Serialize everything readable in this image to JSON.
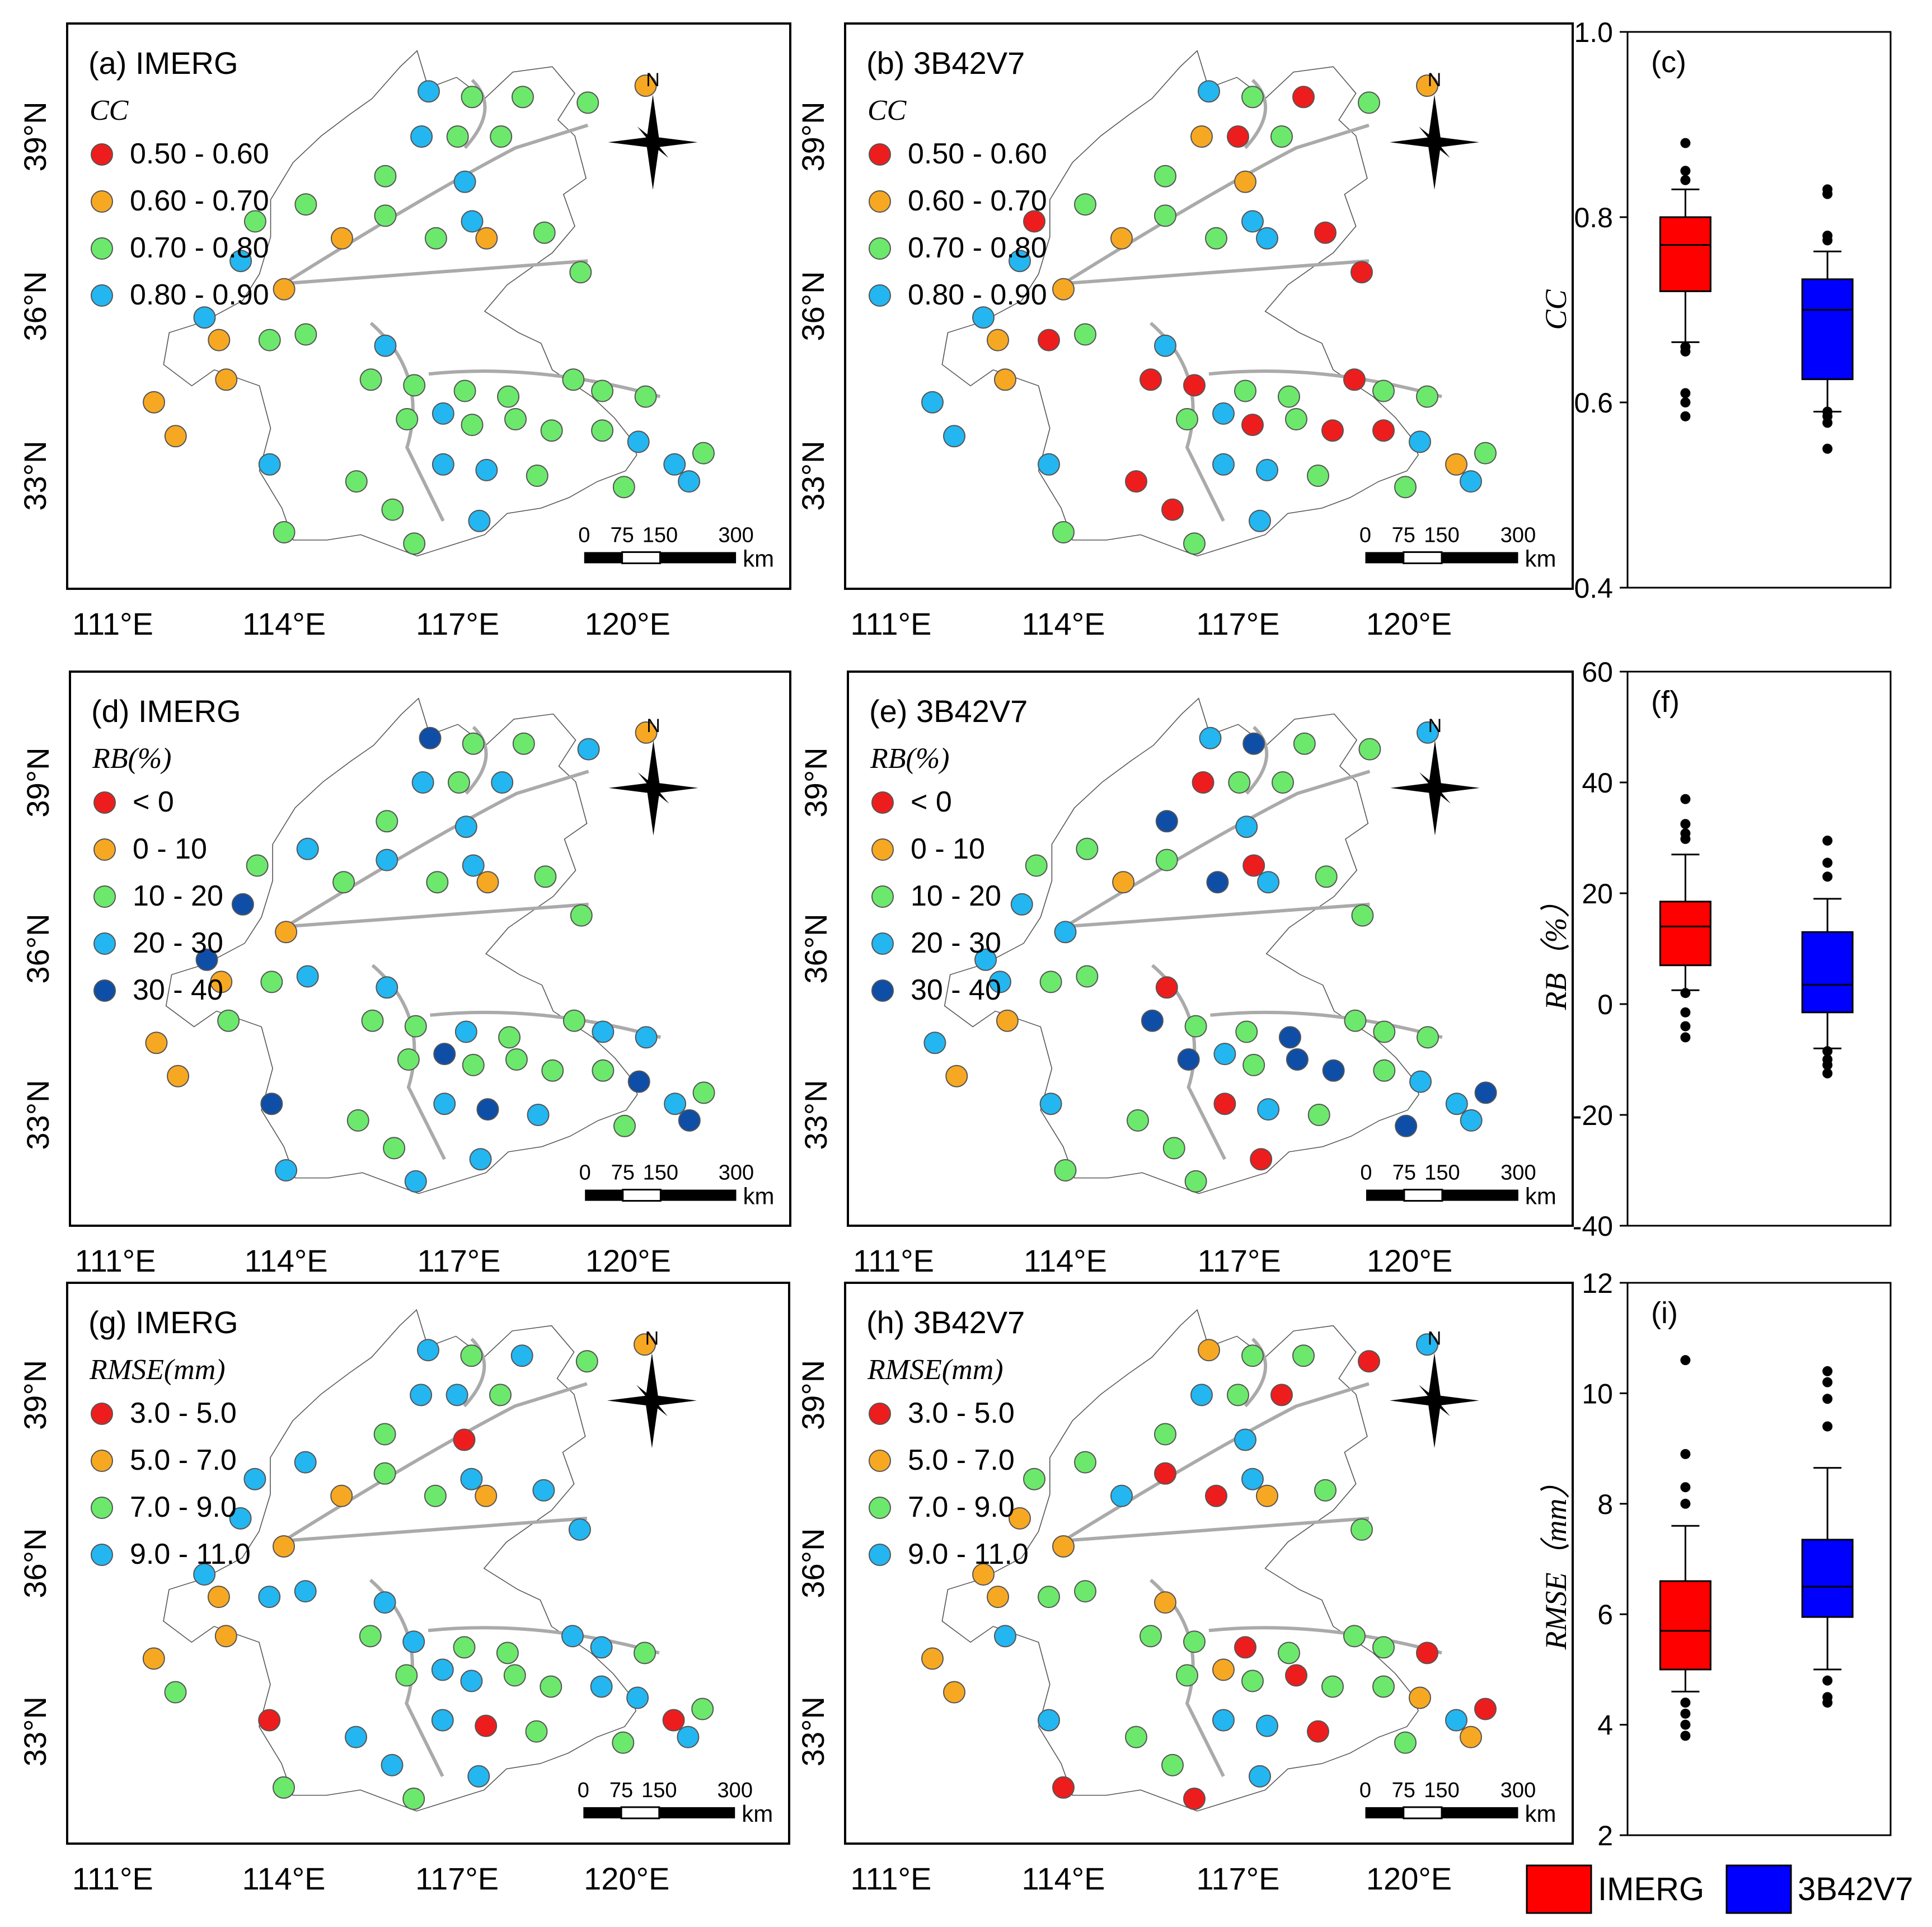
{
  "map_panels": [
    {
      "label": "(a) IMERG",
      "metric": "CC",
      "legend": [
        "0.50 - 0.60",
        "0.60 - 0.70",
        "0.70 - 0.80",
        "0.80 - 0.90"
      ],
      "colors": [
        "#ee1d1d",
        "#f7a823",
        "#6ce96c",
        "#24b6f0"
      ],
      "x_ticks": [
        "111°E",
        "114°E",
        "117°E",
        "120°E"
      ],
      "y_ticks": [
        "39°N",
        "36°N",
        "33°N"
      ],
      "scale_labels": [
        "0",
        "75",
        "150",
        "300"
      ],
      "scale_unit": "km",
      "north": "N"
    },
    {
      "label": "(b) 3B42V7",
      "metric": "CC",
      "legend": [
        "0.50 - 0.60",
        "0.60 - 0.70",
        "0.70 - 0.80",
        "0.80 - 0.90"
      ],
      "colors": [
        "#ee1d1d",
        "#f7a823",
        "#6ce96c",
        "#24b6f0"
      ],
      "x_ticks": [
        "111°E",
        "114°E",
        "117°E",
        "120°E"
      ],
      "y_ticks": [
        "39°N",
        "36°N",
        "33°N"
      ],
      "scale_labels": [
        "0",
        "75",
        "150",
        "300"
      ],
      "scale_unit": "km",
      "north": "N"
    },
    {
      "label": "(d) IMERG",
      "metric": "RB(%)",
      "legend": [
        "< 0",
        "0 - 10",
        "10 - 20",
        "20 - 30",
        "30 - 40"
      ],
      "colors": [
        "#ee1d1d",
        "#f7a823",
        "#6ce96c",
        "#24b6f0",
        "#0f4ea6"
      ],
      "x_ticks": [
        "111°E",
        "114°E",
        "117°E",
        "120°E"
      ],
      "y_ticks": [
        "39°N",
        "36°N",
        "33°N"
      ],
      "scale_labels": [
        "0",
        "75",
        "150",
        "300"
      ],
      "scale_unit": "km",
      "north": "N"
    },
    {
      "label": "(e) 3B42V7",
      "metric": "RB(%)",
      "legend": [
        "< 0",
        "0 - 10",
        "10 - 20",
        "20 - 30",
        "30 - 40"
      ],
      "colors": [
        "#ee1d1d",
        "#f7a823",
        "#6ce96c",
        "#24b6f0",
        "#0f4ea6"
      ],
      "x_ticks": [
        "111°E",
        "114°E",
        "117°E",
        "120°E"
      ],
      "y_ticks": [
        "39°N",
        "36°N",
        "33°N"
      ],
      "scale_labels": [
        "0",
        "75",
        "150",
        "300"
      ],
      "scale_unit": "km",
      "north": "N"
    },
    {
      "label": "(g) IMERG",
      "metric": "RMSE(mm)",
      "legend": [
        "3.0 - 5.0",
        "5.0 - 7.0",
        "7.0 - 9.0",
        "9.0 - 11.0"
      ],
      "colors": [
        "#ee1d1d",
        "#f7a823",
        "#6ce96c",
        "#24b6f0"
      ],
      "x_ticks": [
        "111°E",
        "114°E",
        "117°E",
        "120°E"
      ],
      "y_ticks": [
        "39°N",
        "36°N",
        "33°N"
      ],
      "scale_labels": [
        "0",
        "75",
        "150",
        "300"
      ],
      "scale_unit": "km",
      "north": "N"
    },
    {
      "label": "(h) 3B42V7",
      "metric": "RMSE(mm)",
      "legend": [
        "3.0 - 5.0",
        "5.0 - 7.0",
        "7.0 - 9.0",
        "9.0 - 11.0"
      ],
      "colors": [
        "#ee1d1d",
        "#f7a823",
        "#6ce96c",
        "#24b6f0"
      ],
      "x_ticks": [
        "111°E",
        "114°E",
        "117°E",
        "120°E"
      ],
      "y_ticks": [
        "39°N",
        "36°N",
        "33°N"
      ],
      "scale_labels": [
        "0",
        "75",
        "150",
        "300"
      ],
      "scale_unit": "km",
      "north": "N"
    }
  ],
  "chart_data": [
    {
      "type": "box",
      "title": "(c)",
      "ylabel": "CC",
      "ylim": [
        0.4,
        1.0
      ],
      "yticks": [
        "0.4",
        "0.6",
        "0.8",
        "1.0"
      ],
      "series": [
        {
          "name": "IMERG",
          "color": "#ff0000",
          "min": 0.665,
          "q1": 0.72,
          "median": 0.77,
          "q3": 0.8,
          "max": 0.83,
          "outliers": [
            0.88,
            0.85,
            0.84,
            0.66,
            0.655,
            0.61,
            0.6,
            0.585
          ]
        },
        {
          "name": "3B42V7",
          "color": "#0000ff",
          "min": 0.59,
          "q1": 0.625,
          "median": 0.7,
          "q3": 0.733,
          "max": 0.763,
          "outliers": [
            0.83,
            0.825,
            0.78,
            0.775,
            0.59,
            0.585,
            0.578,
            0.55
          ]
        }
      ]
    },
    {
      "type": "box",
      "title": "(f)",
      "ylabel": "RB（%）",
      "ylim": [
        -40,
        60
      ],
      "yticks": [
        "-40",
        "-20",
        "0",
        "20",
        "40",
        "60"
      ],
      "series": [
        {
          "name": "IMERG",
          "color": "#ff0000",
          "min": 2.5,
          "q1": 7,
          "median": 14,
          "q3": 18.5,
          "max": 27,
          "outliers": [
            37,
            32.5,
            30.8,
            29.8,
            2,
            -1.5,
            -4,
            -6
          ]
        },
        {
          "name": "3B42V7",
          "color": "#0000ff",
          "min": -8,
          "q1": -1.5,
          "median": 3.5,
          "q3": 13,
          "max": 19,
          "outliers": [
            29.5,
            25.5,
            23,
            -8.5,
            -10,
            -11,
            -12.5
          ]
        }
      ]
    },
    {
      "type": "box",
      "title": "(i)",
      "ylabel": "RMSE（mm）",
      "ylim": [
        2,
        12
      ],
      "yticks": [
        "2",
        "4",
        "6",
        "8",
        "10",
        "12"
      ],
      "series": [
        {
          "name": "IMERG",
          "color": "#ff0000",
          "min": 4.6,
          "q1": 5.0,
          "median": 5.7,
          "q3": 6.6,
          "max": 7.6,
          "outliers": [
            10.6,
            8.9,
            8.3,
            8.0,
            4.4,
            4.2,
            4.0,
            3.8
          ]
        },
        {
          "name": "3B42V7",
          "color": "#0000ff",
          "min": 5.0,
          "q1": 5.95,
          "median": 6.5,
          "q3": 7.35,
          "max": 8.65,
          "outliers": [
            10.4,
            10.2,
            9.9,
            9.4,
            4.8,
            4.5,
            4.4
          ]
        }
      ]
    }
  ],
  "legend": [
    {
      "label": "IMERG",
      "color": "#ff0000"
    },
    {
      "label": "3B42V7",
      "color": "#0000ff"
    }
  ]
}
